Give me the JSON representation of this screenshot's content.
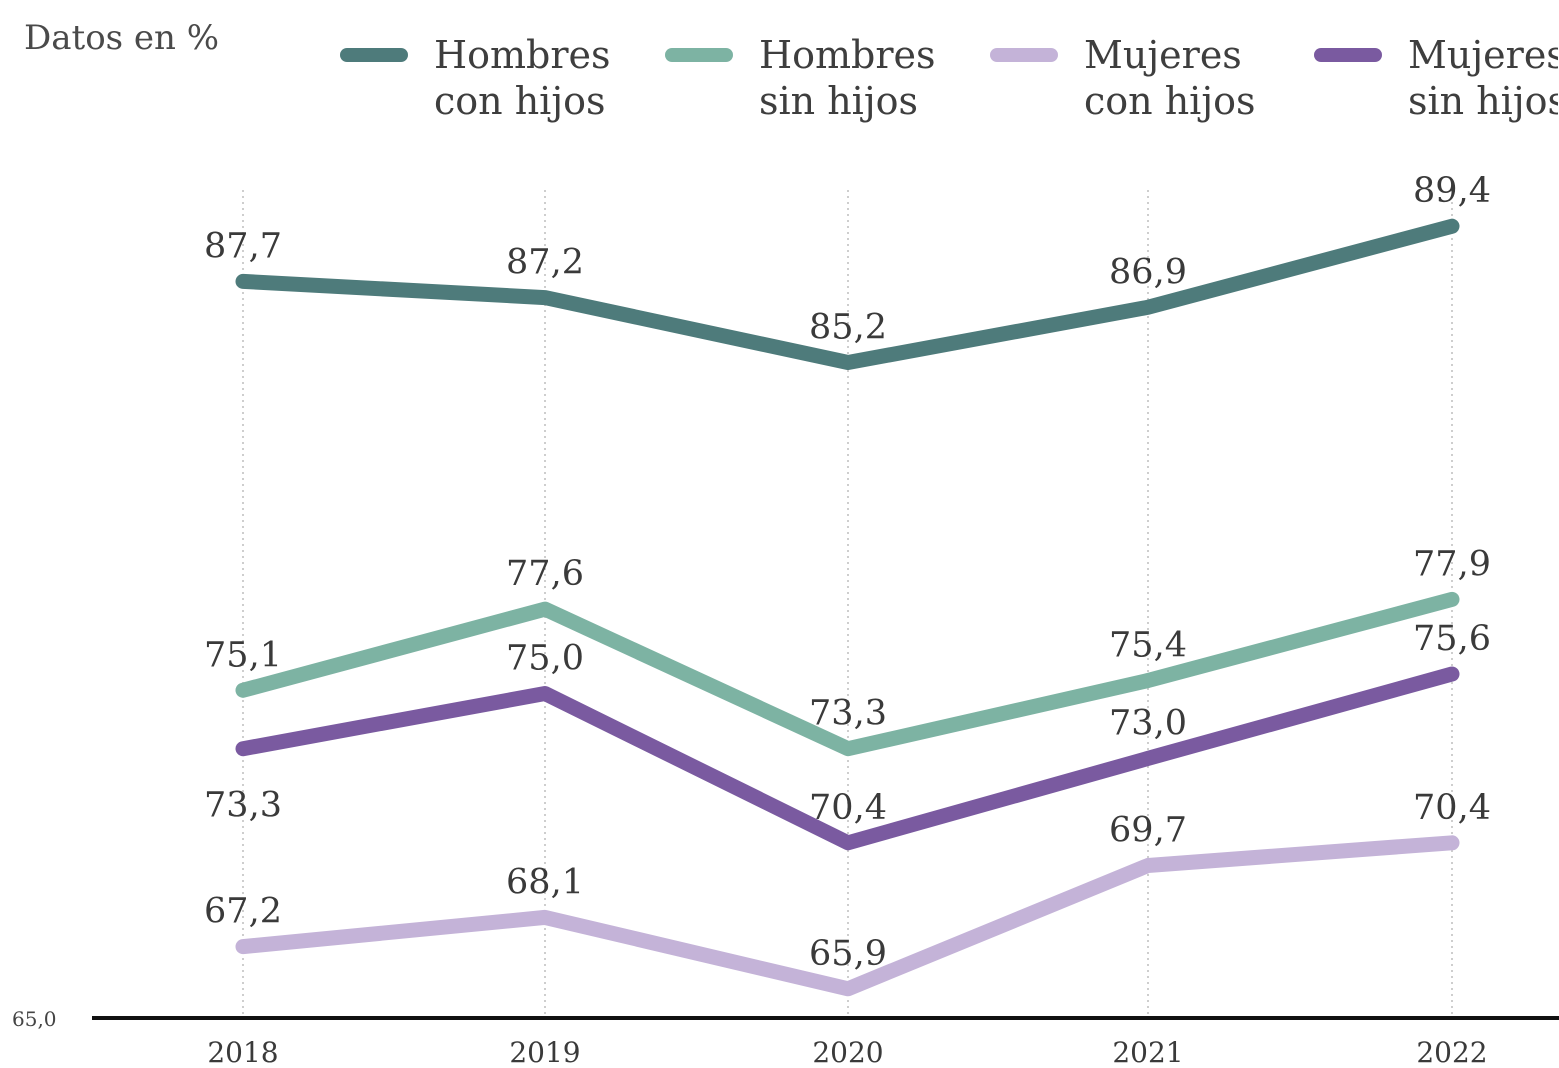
{
  "chart_data": {
    "type": "line",
    "units_label": "Datos en %",
    "categories": [
      "2018",
      "2019",
      "2020",
      "2021",
      "2022"
    ],
    "y_baseline_label": "65,0",
    "ylim": [
      65.0,
      91.0
    ],
    "grid": "vertical dotted lines at each year",
    "legend_position": "top",
    "series": [
      {
        "name_lines": [
          "Hombres",
          "con hijos"
        ],
        "color": "#4e7b7b",
        "values": [
          87.7,
          87.2,
          85.2,
          86.9,
          89.4
        ],
        "labels": [
          "87,7",
          "87,2",
          "85,2",
          "86,9",
          "89,4"
        ],
        "label_pos": [
          "above",
          "above",
          "above",
          "above",
          "above"
        ]
      },
      {
        "name_lines": [
          "Hombres",
          "sin hijos"
        ],
        "color": "#7db3a3",
        "values": [
          75.1,
          77.6,
          73.3,
          75.4,
          77.9
        ],
        "labels": [
          "75,1",
          "77,6",
          "73,3",
          "75,4",
          "77,9"
        ],
        "label_pos": [
          "above",
          "above",
          "above",
          "above",
          "above"
        ]
      },
      {
        "name_lines": [
          "Mujeres",
          "con hijos"
        ],
        "color": "#c4b3d8",
        "values": [
          67.2,
          68.1,
          65.9,
          69.7,
          70.4
        ],
        "labels": [
          "67,2",
          "68,1",
          "65,9",
          "69,7",
          "70,4"
        ],
        "label_pos": [
          "above",
          "above",
          "above",
          "above",
          "above"
        ]
      },
      {
        "name_lines": [
          "Mujeres",
          "sin hijos"
        ],
        "color": "#7a5aa0",
        "values": [
          73.3,
          75.0,
          70.4,
          73.0,
          75.6
        ],
        "labels": [
          "73,3",
          "75,0",
          "70,4",
          "73,0",
          "75,6"
        ],
        "label_pos": [
          "below",
          "above",
          "above",
          "above",
          "above"
        ]
      }
    ]
  }
}
